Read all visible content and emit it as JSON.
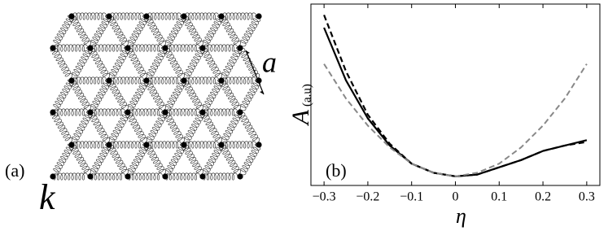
{
  "diagram": {
    "panel_label": "(a)",
    "spacing_label": "a",
    "spring_label": "k"
  },
  "chart_data": {
    "type": "line",
    "panel_label": "(b)",
    "xlabel": "η",
    "ylabel": "A",
    "ylabel_sub": "(a.u)",
    "x": [
      -0.3,
      -0.25,
      -0.2,
      -0.15,
      -0.1,
      -0.05,
      0,
      0.05,
      0.1,
      0.15,
      0.2,
      0.25,
      0.3
    ],
    "series": [
      {
        "color": "#000000",
        "style": "dashed",
        "values": [
          0.94,
          0.63,
          0.39,
          0.23,
          0.12,
          0.07,
          0.05,
          0.06,
          0.1,
          0.14,
          0.19,
          0.22,
          0.24
        ]
      },
      {
        "color": "#000000",
        "style": "solid",
        "values": [
          0.87,
          0.58,
          0.37,
          0.22,
          0.12,
          0.07,
          0.05,
          0.06,
          0.1,
          0.14,
          0.19,
          0.22,
          0.25
        ]
      },
      {
        "color": "#888888",
        "style": "dashed",
        "values": [
          0.67,
          0.48,
          0.33,
          0.21,
          0.12,
          0.07,
          0.05,
          0.07,
          0.12,
          0.21,
          0.33,
          0.48,
          0.67
        ]
      }
    ],
    "xlim": [
      -0.33,
      0.33
    ],
    "ylim": [
      0,
      1
    ],
    "xticks": [
      {
        "value": -0.3,
        "label": "−0.3"
      },
      {
        "value": -0.2,
        "label": "−0.2"
      },
      {
        "value": -0.1,
        "label": "−0.1"
      },
      0,
      0.1,
      0.2,
      0.3
    ]
  }
}
